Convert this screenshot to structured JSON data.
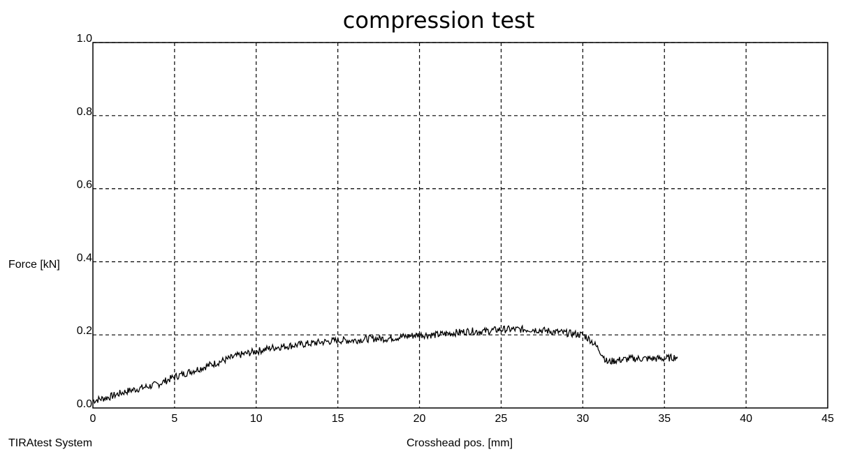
{
  "chart_data": {
    "type": "line",
    "title": "compression test",
    "xlabel": "Crosshead pos. [mm]",
    "ylabel": "Force [kN]",
    "footer_left": "TIRAtest System",
    "xlim": [
      0,
      45
    ],
    "ylim": [
      0,
      1.0
    ],
    "xticks": [
      0,
      5,
      10,
      15,
      20,
      25,
      30,
      35,
      40,
      45
    ],
    "xtick_labels": [
      "0",
      "5",
      "10",
      "15",
      "20",
      "25",
      "30",
      "35",
      "40",
      "45"
    ],
    "yticks": [
      0,
      0.2,
      0.4,
      0.6,
      0.8,
      1.0
    ],
    "ytick_labels": [
      "0.0",
      "0.2",
      "0.4",
      "0.6",
      "0.8",
      "1.0"
    ],
    "grid": true,
    "series": [
      {
        "x": [
          0,
          1,
          2,
          3,
          4,
          5,
          6,
          7,
          8,
          9,
          10,
          11,
          12,
          13,
          14,
          15,
          16,
          17,
          18,
          19,
          20,
          21,
          22,
          23,
          24,
          25,
          26,
          27,
          28,
          29,
          30,
          30.5,
          31,
          31.5,
          32,
          33,
          34,
          35,
          35.8
        ],
        "y": [
          0.02,
          0.03,
          0.045,
          0.055,
          0.065,
          0.085,
          0.1,
          0.115,
          0.13,
          0.145,
          0.155,
          0.165,
          0.17,
          0.175,
          0.18,
          0.185,
          0.185,
          0.19,
          0.19,
          0.195,
          0.2,
          0.2,
          0.205,
          0.21,
          0.21,
          0.215,
          0.215,
          0.215,
          0.21,
          0.205,
          0.2,
          0.185,
          0.16,
          0.125,
          0.13,
          0.135,
          0.135,
          0.135,
          0.14
        ]
      }
    ]
  }
}
